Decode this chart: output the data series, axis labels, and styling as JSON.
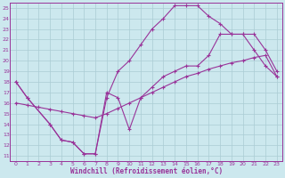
{
  "bg_color": "#cce8ee",
  "line_color": "#993399",
  "grid_color": "#aaccd4",
  "ylabel_values": [
    11,
    12,
    13,
    14,
    15,
    16,
    17,
    18,
    19,
    20,
    21,
    22,
    23,
    24,
    25
  ],
  "xlabel_values": [
    0,
    1,
    2,
    3,
    4,
    5,
    6,
    7,
    8,
    9,
    10,
    11,
    12,
    13,
    14,
    15,
    16,
    17,
    18,
    19,
    20,
    21,
    22,
    23
  ],
  "xlim": [
    -0.5,
    23.5
  ],
  "ylim": [
    10.5,
    25.5
  ],
  "xlabel": "Windchill (Refroidissement éolien,°C)",
  "curve1_x": [
    0,
    1,
    3,
    4,
    5,
    6,
    7,
    8,
    9,
    10,
    11,
    12,
    13,
    14,
    15,
    16,
    17,
    18,
    19,
    20,
    21,
    22,
    23
  ],
  "curve1_y": [
    18,
    16.5,
    14.0,
    12.5,
    12.3,
    11.2,
    11.2,
    17.0,
    16.5,
    13.5,
    16.5,
    17.5,
    18.5,
    19.0,
    19.5,
    19.5,
    20.5,
    22.5,
    22.5,
    22.5,
    22.5,
    21.0,
    19.0
  ],
  "curve2_x": [
    0,
    1,
    3,
    4,
    5,
    6,
    7,
    8,
    9,
    10,
    11,
    12,
    13,
    14,
    15,
    16,
    17,
    18,
    19,
    20,
    21,
    22,
    23
  ],
  "curve2_y": [
    18,
    16.5,
    14.0,
    12.5,
    12.3,
    11.2,
    11.2,
    16.5,
    19.0,
    20.0,
    21.5,
    23.0,
    24.0,
    25.2,
    25.2,
    25.2,
    24.2,
    23.5,
    22.5,
    22.5,
    21.0,
    19.5,
    18.5
  ],
  "curve3_x": [
    0,
    1,
    2,
    3,
    4,
    5,
    6,
    7,
    8,
    9,
    10,
    11,
    12,
    13,
    14,
    15,
    16,
    17,
    18,
    19,
    20,
    21,
    22,
    23
  ],
  "curve3_y": [
    16.0,
    15.8,
    15.6,
    15.4,
    15.2,
    15.0,
    14.8,
    14.6,
    15.0,
    15.5,
    16.0,
    16.5,
    17.0,
    17.5,
    18.0,
    18.5,
    18.8,
    19.2,
    19.5,
    19.8,
    20.0,
    20.3,
    20.5,
    18.5
  ]
}
